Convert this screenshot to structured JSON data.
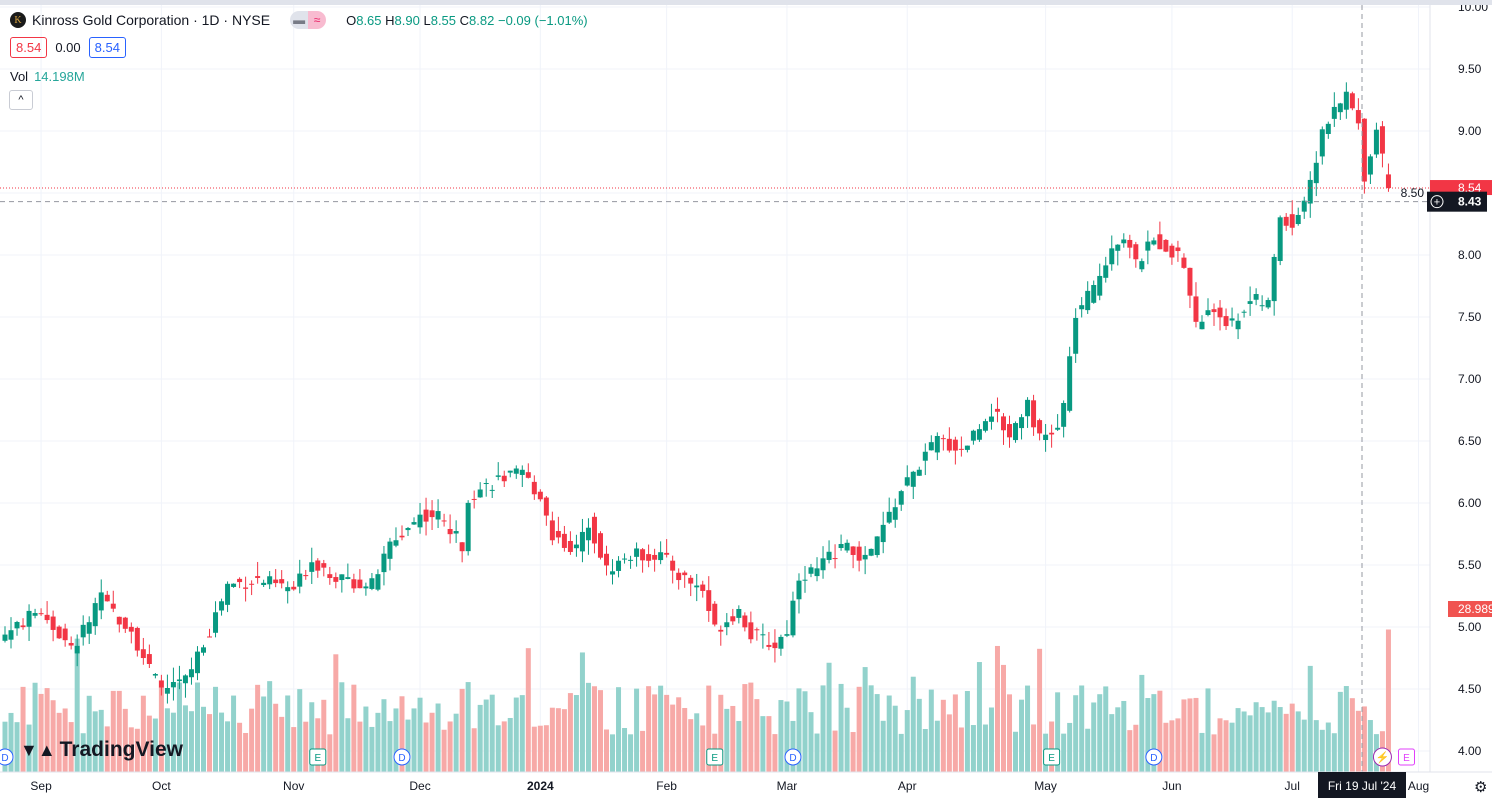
{
  "header": {
    "logo_letter": "K",
    "title": "Kinross Gold Corporation · 1D · NYSE",
    "open_label": "O",
    "open": "8.65",
    "high_label": "H",
    "high": "8.90",
    "low_label": "L",
    "low": "8.55",
    "close_label": "C",
    "close": "8.82",
    "change": "−0.09 (−1.01%)",
    "bid": "8.54",
    "spread": "0.00",
    "ask": "8.54",
    "vol_label": "Vol",
    "vol_value": "14.198M",
    "collapse_icon": "^",
    "toggle_left": "▬",
    "toggle_right": "≈"
  },
  "branding": {
    "name": "TradingView"
  },
  "colors": {
    "up": "#089981",
    "down": "#f23645",
    "vol_up": "#92d2cc",
    "vol_down": "#f7a9a7",
    "grid": "#f0f3fa"
  },
  "chart_data": {
    "type": "candlestick",
    "title": "Kinross Gold Corporation · 1D · NYSE",
    "ylim": [
      3.8,
      10.05
    ],
    "y_ticks": [
      "4.00",
      "4.50",
      "5.00",
      "5.50",
      "6.00",
      "6.50",
      "7.00",
      "7.50",
      "8.00",
      "8.50",
      "9.00",
      "9.50",
      "10.00"
    ],
    "x_ticks": [
      {
        "label": "Sep",
        "day": 6
      },
      {
        "label": "Oct",
        "day": 26
      },
      {
        "label": "Nov",
        "day": 48
      },
      {
        "label": "Dec",
        "day": 69
      },
      {
        "label": "2024",
        "day": 89
      },
      {
        "label": "Feb",
        "day": 110
      },
      {
        "label": "Mar",
        "day": 130
      },
      {
        "label": "Apr",
        "day": 150
      },
      {
        "label": "May",
        "day": 173
      },
      {
        "label": "Jun",
        "day": 194
      },
      {
        "label": "Jul",
        "day": 214
      },
      {
        "label": "Aug",
        "day": 235
      }
    ],
    "closes_by_day": [
      [
        0,
        4.94
      ],
      [
        6,
        5.14
      ],
      [
        11,
        4.81
      ],
      [
        16,
        5.22
      ],
      [
        21,
        4.98
      ],
      [
        24,
        4.65
      ],
      [
        26,
        4.5
      ],
      [
        30,
        4.57
      ],
      [
        34,
        4.98
      ],
      [
        37,
        5.34
      ],
      [
        42,
        5.38
      ],
      [
        48,
        5.3
      ],
      [
        51,
        5.54
      ],
      [
        56,
        5.38
      ],
      [
        61,
        5.34
      ],
      [
        64,
        5.66
      ],
      [
        69,
        5.9
      ],
      [
        72,
        5.9
      ],
      [
        76,
        5.66
      ],
      [
        77,
        6.06
      ],
      [
        82,
        6.19
      ],
      [
        86,
        6.23
      ],
      [
        89,
        6.06
      ],
      [
        91,
        5.74
      ],
      [
        95,
        5.62
      ],
      [
        97,
        5.86
      ],
      [
        100,
        5.46
      ],
      [
        104,
        5.58
      ],
      [
        109,
        5.58
      ],
      [
        112,
        5.42
      ],
      [
        116,
        5.3
      ],
      [
        118,
        4.98
      ],
      [
        122,
        5.14
      ],
      [
        124,
        4.94
      ],
      [
        128,
        4.85
      ],
      [
        130,
        4.98
      ],
      [
        132,
        5.42
      ],
      [
        135,
        5.46
      ],
      [
        139,
        5.66
      ],
      [
        143,
        5.54
      ],
      [
        145,
        5.7
      ],
      [
        149,
        6.1
      ],
      [
        152,
        6.31
      ],
      [
        155,
        6.51
      ],
      [
        159,
        6.43
      ],
      [
        164,
        6.75
      ],
      [
        167,
        6.55
      ],
      [
        170,
        6.83
      ],
      [
        172,
        6.51
      ],
      [
        175,
        6.59
      ],
      [
        176,
        6.79
      ],
      [
        178,
        7.52
      ],
      [
        181,
        7.72
      ],
      [
        184,
        8.08
      ],
      [
        186,
        8.16
      ],
      [
        188,
        7.92
      ],
      [
        191,
        8.12
      ],
      [
        194,
        8.04
      ],
      [
        196,
        7.92
      ],
      [
        198,
        7.44
      ],
      [
        201,
        7.56
      ],
      [
        204,
        7.44
      ],
      [
        207,
        7.64
      ],
      [
        210,
        7.6
      ],
      [
        212,
        8.32
      ],
      [
        214,
        8.24
      ],
      [
        217,
        8.56
      ],
      [
        219,
        9.01
      ],
      [
        222,
        9.21
      ],
      [
        223,
        9.29
      ],
      [
        225,
        9.05
      ],
      [
        226,
        8.65
      ],
      [
        228,
        9.01
      ],
      [
        229,
        8.85
      ],
      [
        230,
        8.54
      ]
    ],
    "last_price": "8.54",
    "crosshair_price": "8.43",
    "crosshair_date": "Fri 19 Jul '24",
    "last_volume": "28.989",
    "event_markers": [
      {
        "type": "D",
        "day": 0
      },
      {
        "type": "E",
        "day": 52
      },
      {
        "type": "D",
        "day": 66
      },
      {
        "type": "E",
        "day": 118
      },
      {
        "type": "D",
        "day": 131
      },
      {
        "type": "E",
        "day": 174
      },
      {
        "type": "D",
        "day": 191
      },
      {
        "type": "⚡",
        "day": 229
      },
      {
        "type": "E",
        "day": 233
      }
    ]
  }
}
